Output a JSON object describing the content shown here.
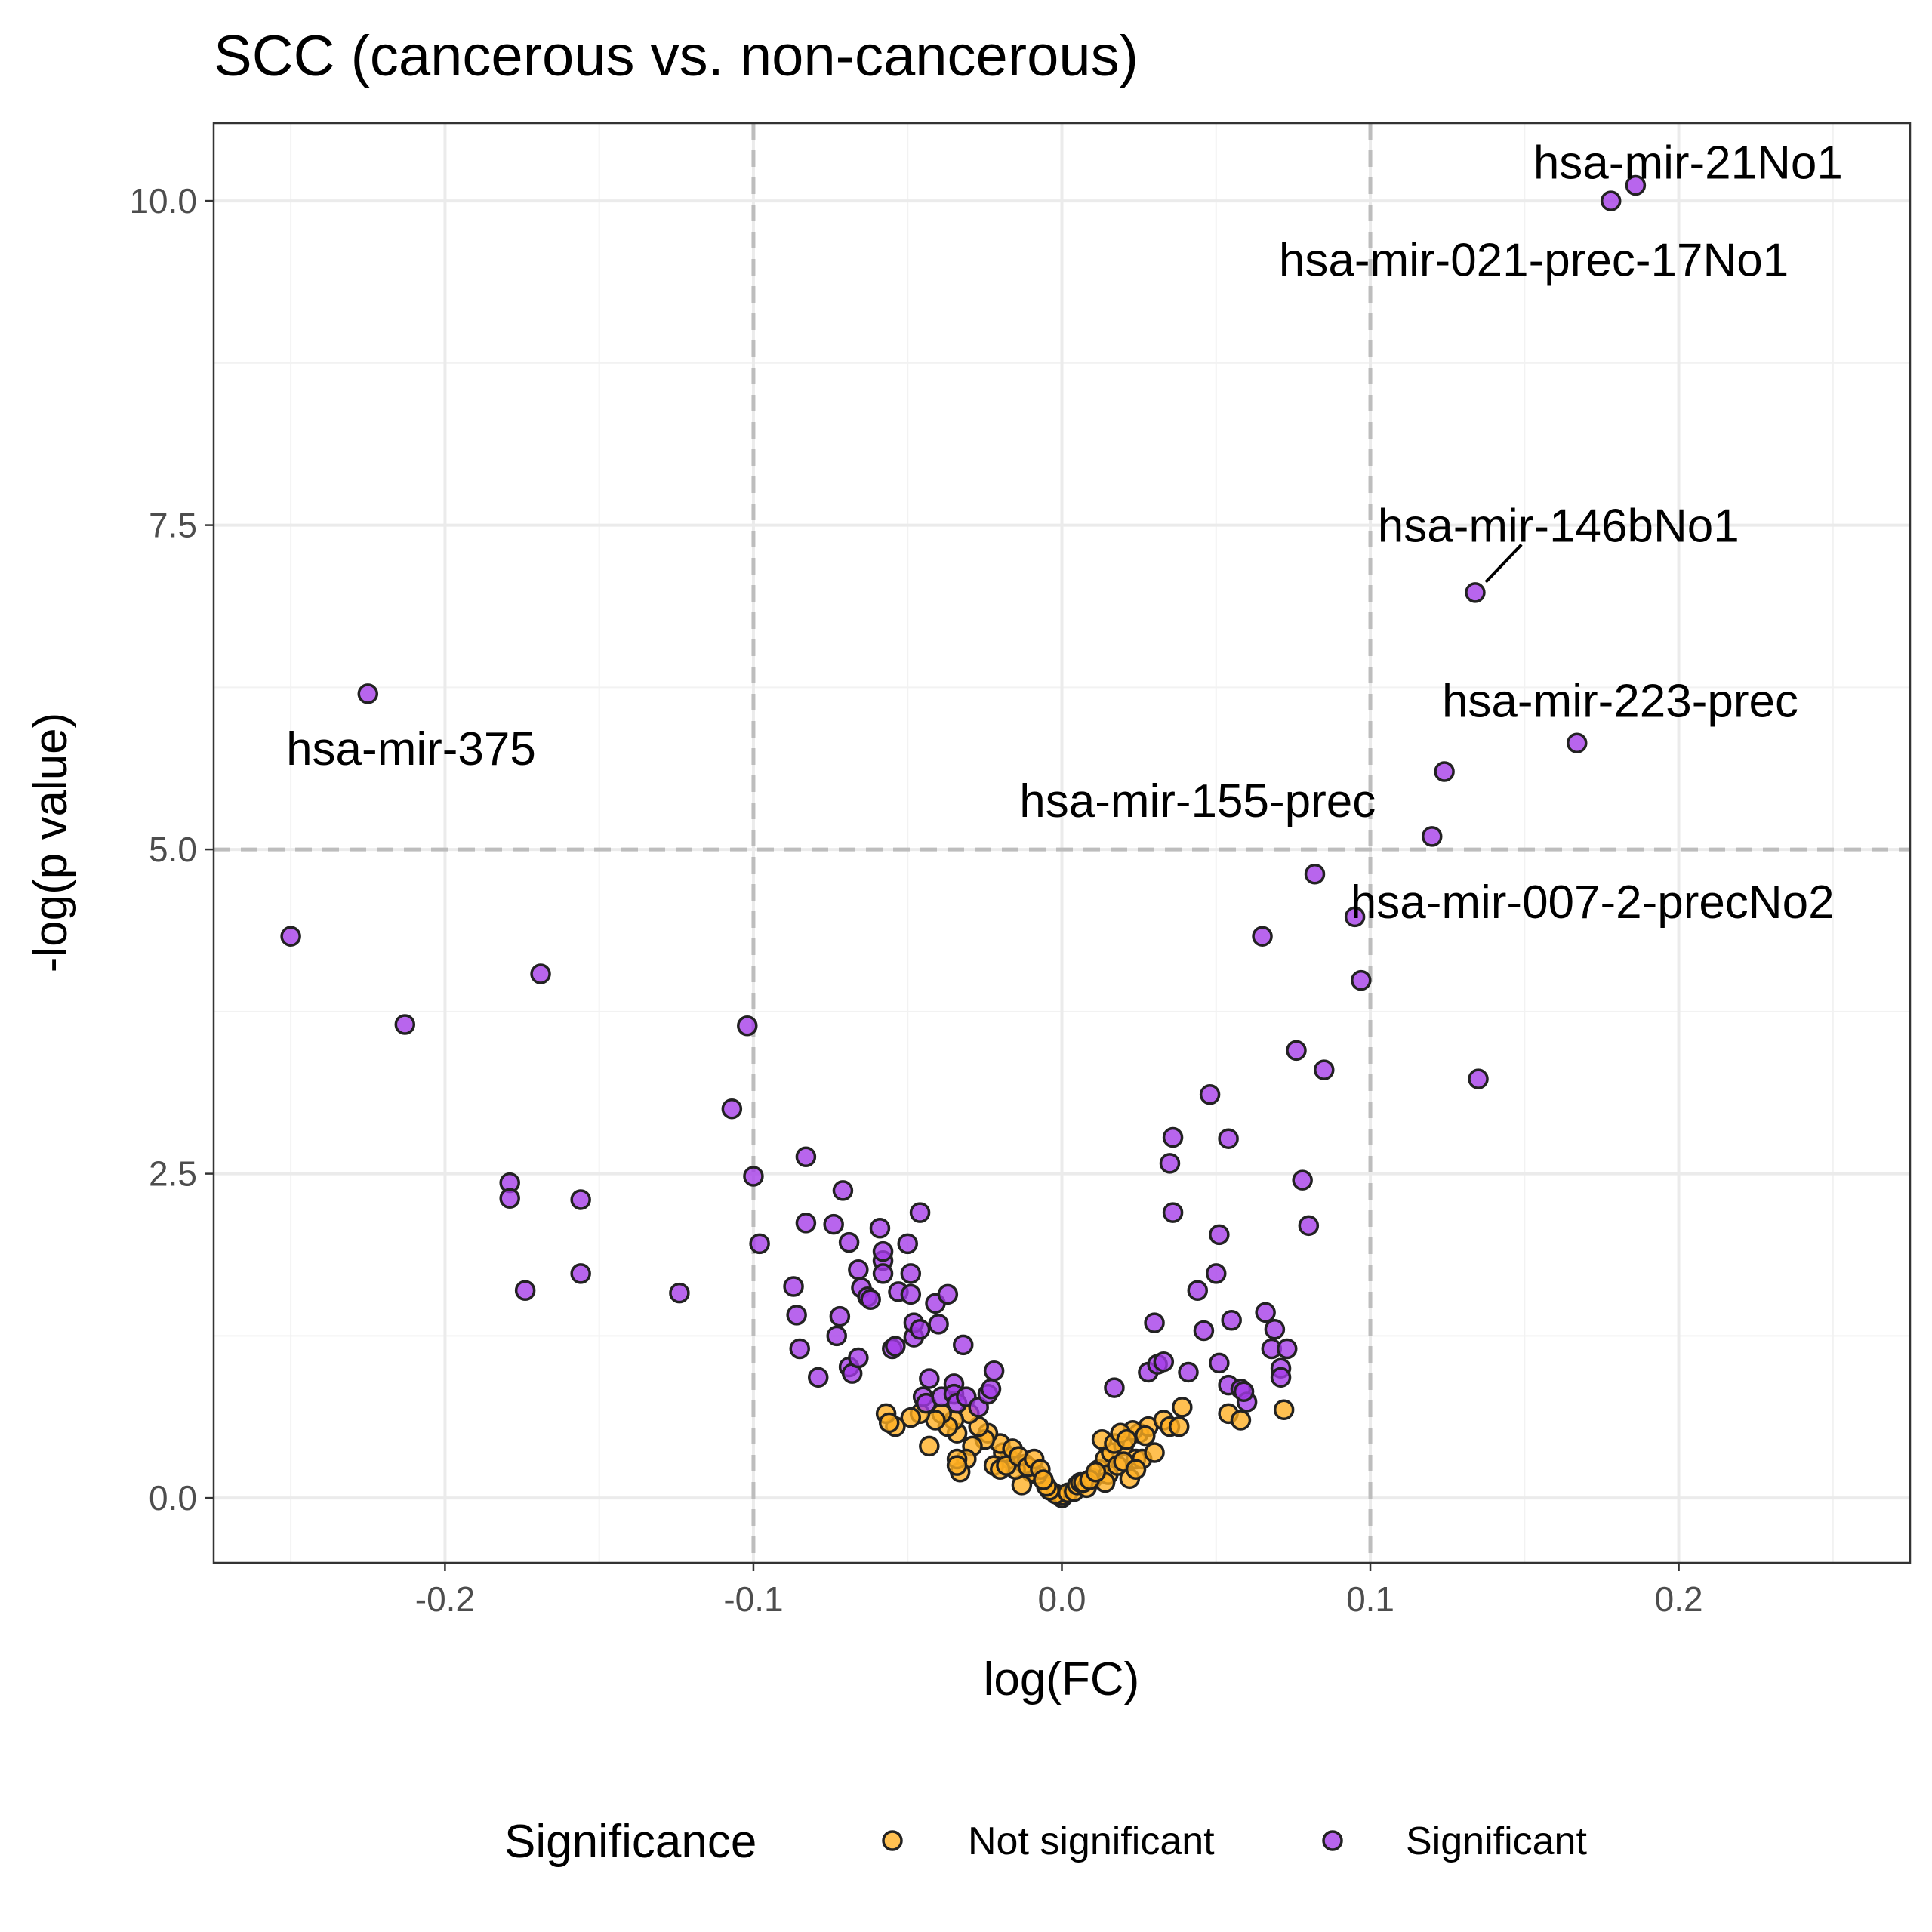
{
  "chart_data": {
    "type": "scatter",
    "title": "SCC (cancerous vs. non-cancerous)",
    "xlabel": "log(FC)",
    "ylabel": "-log(p value)",
    "xlim": [
      -0.275,
      0.275
    ],
    "ylim": [
      -0.5,
      10.6
    ],
    "x_ticks": [
      -0.2,
      -0.1,
      0.0,
      0.1,
      0.2
    ],
    "x_tick_labels": [
      "-0.2",
      "-0.1",
      "0.0",
      "0.1",
      "0.2"
    ],
    "y_ticks": [
      0,
      2.5,
      5,
      7.5,
      10
    ],
    "y_tick_labels": [
      "0.0",
      "2.5",
      "5.0",
      "7.5",
      "10.0"
    ],
    "grid": true,
    "threshold_lines": {
      "x": [
        -0.1,
        0.1
      ],
      "y": [
        5
      ]
    },
    "legend": {
      "title": "Significance",
      "position": "bottom",
      "entries": [
        {
          "label": "Not significant",
          "color": "#ffae20"
        },
        {
          "label": "Significant",
          "color": "#a43ae8"
        }
      ]
    },
    "colors": {
      "not_significant": "#ffae20",
      "significant": "#a43ae8",
      "outline": "#222222",
      "threshold": "#bdbdbd"
    },
    "series": [
      {
        "name": "Not significant",
        "points": [
          [
            0.0,
            0.0
          ],
          [
            0.0,
            0.02
          ],
          [
            -0.002,
            0.03
          ],
          [
            0.002,
            0.04
          ],
          [
            -0.004,
            0.06
          ],
          [
            0.004,
            0.05
          ],
          [
            -0.005,
            0.09
          ],
          [
            0.005,
            0.1
          ],
          [
            0.006,
            0.12
          ],
          [
            -0.006,
            0.14
          ],
          [
            0.008,
            0.08
          ],
          [
            -0.008,
            0.18
          ],
          [
            0.01,
            0.15
          ],
          [
            -0.01,
            0.2
          ],
          [
            0.012,
            0.22
          ],
          [
            -0.012,
            0.26
          ],
          [
            0.014,
            0.3
          ],
          [
            -0.013,
            0.1
          ],
          [
            0.015,
            0.18
          ],
          [
            -0.015,
            0.22
          ],
          [
            0.016,
            0.35
          ],
          [
            -0.017,
            0.3
          ],
          [
            0.018,
            0.25
          ],
          [
            -0.019,
            0.35
          ],
          [
            0.02,
            0.4
          ],
          [
            -0.02,
            0.42
          ],
          [
            0.022,
            0.15
          ],
          [
            -0.022,
            0.25
          ],
          [
            0.024,
            0.3
          ],
          [
            -0.024,
            0.5
          ],
          [
            0.025,
            0.5
          ],
          [
            -0.025,
            0.45
          ],
          [
            0.026,
            0.3
          ],
          [
            -0.027,
            0.55
          ],
          [
            0.028,
            0.55
          ],
          [
            -0.029,
            0.4
          ],
          [
            0.03,
            0.35
          ],
          [
            -0.03,
            0.65
          ],
          [
            0.013,
            0.45
          ],
          [
            -0.031,
            0.3
          ],
          [
            0.033,
            0.6
          ],
          [
            -0.033,
            0.2
          ],
          [
            0.014,
            0.12
          ],
          [
            -0.034,
            0.5
          ],
          [
            0.035,
            0.55
          ],
          [
            -0.035,
            0.6
          ],
          [
            0.039,
            0.7
          ],
          [
            -0.037,
            0.55
          ],
          [
            0.038,
            0.55
          ],
          [
            -0.039,
            0.65
          ],
          [
            0.054,
            0.65
          ],
          [
            -0.041,
            0.6
          ],
          [
            0.058,
            0.6
          ],
          [
            -0.043,
            0.4
          ],
          [
            0.072,
            0.68
          ],
          [
            -0.046,
            0.65
          ],
          [
            -0.049,
            0.62
          ],
          [
            -0.054,
            0.55
          ],
          [
            -0.057,
            0.65
          ],
          [
            -0.056,
            0.58
          ],
          [
            -0.034,
            0.3
          ],
          [
            -0.034,
            0.25
          ],
          [
            -0.02,
            0.22
          ],
          [
            -0.018,
            0.25
          ],
          [
            -0.016,
            0.38
          ],
          [
            -0.014,
            0.32
          ],
          [
            -0.011,
            0.24
          ],
          [
            -0.009,
            0.3
          ],
          [
            -0.007,
            0.22
          ],
          [
            -0.006,
            0.14
          ],
          [
            0.007,
            0.12
          ],
          [
            0.009,
            0.14
          ],
          [
            0.011,
            0.2
          ],
          [
            0.02,
            0.28
          ],
          [
            0.023,
            0.52
          ],
          [
            0.027,
            0.48
          ],
          [
            0.017,
            0.42
          ],
          [
            0.019,
            0.5
          ],
          [
            0.021,
            0.45
          ],
          [
            0.024,
            0.22
          ]
        ]
      },
      {
        "name": "Significant",
        "points": [
          [
            -0.25,
            4.33
          ],
          [
            -0.225,
            6.2
          ],
          [
            -0.213,
            3.65
          ],
          [
            -0.169,
            4.04
          ],
          [
            -0.179,
            2.43
          ],
          [
            -0.179,
            2.31
          ],
          [
            -0.174,
            1.6
          ],
          [
            -0.156,
            2.3
          ],
          [
            -0.156,
            1.73
          ],
          [
            -0.124,
            1.58
          ],
          [
            -0.107,
            3.0
          ],
          [
            -0.102,
            3.64
          ],
          [
            -0.1,
            2.48
          ],
          [
            -0.098,
            1.96
          ],
          [
            -0.087,
            1.63
          ],
          [
            -0.086,
            1.41
          ],
          [
            -0.085,
            1.15
          ],
          [
            -0.083,
            2.63
          ],
          [
            -0.083,
            2.12
          ],
          [
            -0.079,
            0.93
          ],
          [
            -0.074,
            2.11
          ],
          [
            -0.073,
            1.25
          ],
          [
            -0.072,
            1.4
          ],
          [
            -0.071,
            2.37
          ],
          [
            -0.069,
            1.97
          ],
          [
            -0.069,
            1.01
          ],
          [
            -0.068,
            0.96
          ],
          [
            -0.066,
            1.76
          ],
          [
            -0.065,
            1.62
          ],
          [
            -0.066,
            1.08
          ],
          [
            -0.063,
            1.55
          ],
          [
            -0.062,
            1.53
          ],
          [
            -0.059,
            2.08
          ],
          [
            -0.058,
            1.83
          ],
          [
            -0.058,
            1.73
          ],
          [
            -0.058,
            1.9
          ],
          [
            -0.055,
            1.15
          ],
          [
            -0.054,
            1.17
          ],
          [
            -0.053,
            1.59
          ],
          [
            -0.05,
            1.96
          ],
          [
            -0.049,
            1.73
          ],
          [
            -0.049,
            1.57
          ],
          [
            -0.048,
            1.24
          ],
          [
            -0.048,
            1.35
          ],
          [
            -0.046,
            2.2
          ],
          [
            -0.046,
            1.3
          ],
          [
            -0.045,
            0.78
          ],
          [
            -0.044,
            0.73
          ],
          [
            -0.043,
            0.92
          ],
          [
            -0.041,
            1.5
          ],
          [
            -0.04,
            1.34
          ],
          [
            -0.039,
            0.78
          ],
          [
            -0.037,
            1.57
          ],
          [
            -0.035,
            0.88
          ],
          [
            -0.035,
            0.8
          ],
          [
            -0.034,
            0.73
          ],
          [
            -0.032,
            1.18
          ],
          [
            -0.031,
            0.78
          ],
          [
            -0.027,
            0.7
          ],
          [
            -0.024,
            0.8
          ],
          [
            -0.022,
            0.98
          ],
          [
            -0.023,
            0.84
          ],
          [
            0.017,
            0.85
          ],
          [
            0.028,
            0.97
          ],
          [
            0.03,
            1.35
          ],
          [
            0.031,
            1.03
          ],
          [
            0.033,
            1.05
          ],
          [
            0.035,
            2.58
          ],
          [
            0.036,
            2.2
          ],
          [
            0.036,
            2.78
          ],
          [
            0.041,
            0.97
          ],
          [
            0.044,
            1.6
          ],
          [
            0.046,
            1.29
          ],
          [
            0.048,
            3.11
          ],
          [
            0.05,
            1.73
          ],
          [
            0.051,
            1.04
          ],
          [
            0.051,
            2.03
          ],
          [
            0.054,
            2.77
          ],
          [
            0.055,
            1.37
          ],
          [
            0.054,
            0.87
          ],
          [
            0.058,
            0.84
          ],
          [
            0.06,
            0.74
          ],
          [
            0.065,
            4.33
          ],
          [
            0.066,
            1.43
          ],
          [
            0.068,
            1.15
          ],
          [
            0.069,
            1.3
          ],
          [
            0.071,
            1.0
          ],
          [
            0.071,
            0.93
          ],
          [
            0.073,
            1.15
          ],
          [
            0.076,
            3.45
          ],
          [
            0.078,
            2.45
          ],
          [
            0.08,
            2.1
          ],
          [
            0.082,
            4.81
          ],
          [
            0.085,
            3.3
          ],
          [
            0.095,
            4.48
          ],
          [
            0.097,
            3.99
          ],
          [
            0.12,
            5.1
          ],
          [
            0.124,
            5.6
          ],
          [
            0.134,
            6.98
          ],
          [
            0.135,
            3.23
          ],
          [
            0.167,
            5.82
          ],
          [
            0.178,
            10.0
          ],
          [
            0.186,
            10.12
          ],
          [
            0.059,
            0.82
          ]
        ]
      }
    ],
    "annotations": [
      {
        "text": "hsa-mir-21No1",
        "point": [
          0.186,
          10.12
        ],
        "label_at": [
          0.203,
          10.3
        ],
        "anchor": "middle",
        "leader": false
      },
      {
        "text": "hsa-mir-021-prec-17No1",
        "point": [
          0.178,
          10.0
        ],
        "label_at": [
          0.153,
          9.55
        ],
        "anchor": "middle",
        "leader": false
      },
      {
        "text": "hsa-mir-146bNo1",
        "point": [
          0.134,
          6.98
        ],
        "label_at": [
          0.161,
          7.5
        ],
        "anchor": "middle",
        "leader": true,
        "leader_to": [
          0.149,
          7.35
        ]
      },
      {
        "text": "hsa-mir-223-prec",
        "point": [
          0.167,
          5.82
        ],
        "label_at": [
          0.181,
          6.15
        ],
        "anchor": "middle",
        "leader": false
      },
      {
        "text": "hsa-mir-155-prec",
        "point": [
          0.12,
          5.1
        ],
        "label_at": [
          0.044,
          5.38
        ],
        "anchor": "middle",
        "leader": false
      },
      {
        "text": "hsa-mir-007-2-precNo2",
        "point": [
          0.082,
          4.81
        ],
        "label_at": [
          0.172,
          4.6
        ],
        "anchor": "middle",
        "leader": false
      },
      {
        "text": "hsa-mir-375",
        "point": [
          -0.225,
          6.2
        ],
        "label_at": [
          -0.211,
          5.78
        ],
        "anchor": "middle",
        "leader": false
      }
    ]
  }
}
